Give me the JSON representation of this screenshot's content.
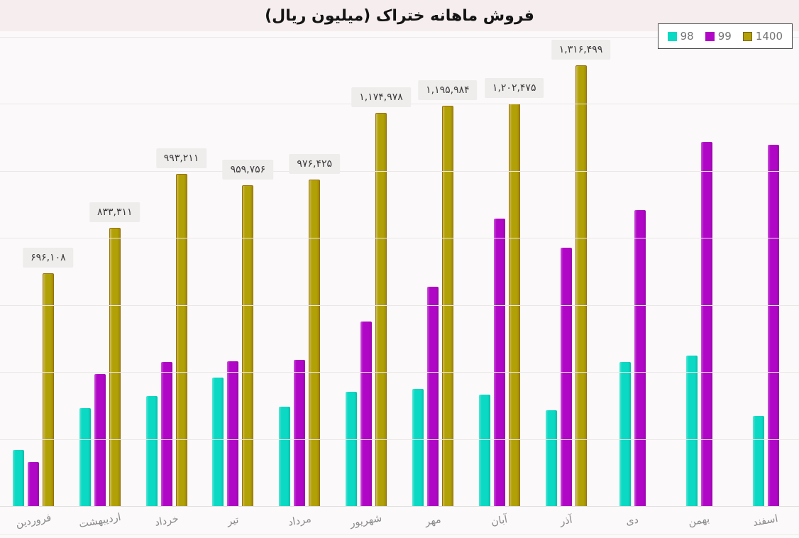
{
  "title": "فروش ماهانه ختراک (میلیون ریال)",
  "legend": {
    "items": [
      {
        "label": "98",
        "color": "#0bd9c3"
      },
      {
        "label": "99",
        "color": "#b007c6"
      },
      {
        "label": "1400",
        "color": "#b2a007"
      }
    ]
  },
  "chart_data": {
    "type": "bar",
    "title": "فروش ماهانه ختراک (میلیون ریال)",
    "categories": [
      "فروردین",
      "اردیبهشت",
      "خرداد",
      "تیر",
      "مرداد",
      "شهریور",
      "مهر",
      "آبان",
      "آذر",
      "دی",
      "بهمن",
      "اسفند"
    ],
    "series": [
      {
        "name": "98",
        "color": "#0bd9c3",
        "values": [
          170000,
          295000,
          330000,
          385000,
          299000,
          344000,
          352000,
          335000,
          288000,
          432000,
          452000,
          272000
        ]
      },
      {
        "name": "99",
        "color": "#b007c6",
        "values": [
          134000,
          396000,
          432000,
          434000,
          438000,
          553000,
          656000,
          860000,
          773000,
          886000,
          1088000,
          1080000
        ]
      },
      {
        "name": "1400",
        "color": "#b2a007",
        "values": [
          696108,
          833311,
          993211,
          959756,
          976425,
          1174978,
          1195984,
          1202475,
          1316499,
          null,
          null,
          null
        ],
        "labels": [
          "۶۹۶,۱۰۸",
          "۸۳۳,۳۱۱",
          "۹۹۳,۲۱۱",
          "۹۵۹,۷۵۶",
          "۹۷۶,۴۲۵",
          "۱,۱۷۴,۹۷۸",
          "۱,۱۹۵,۹۸۴",
          "۱,۲۰۲,۴۷۵",
          "۱,۳۱۶,۴۹۹"
        ]
      }
    ],
    "xlabel": "",
    "ylabel": "",
    "ylim": [
      0,
      1400000
    ],
    "gridline_step": 200000,
    "grid": "horizontal",
    "y_tick_labels_visible": false,
    "legend_position": "top-right"
  }
}
